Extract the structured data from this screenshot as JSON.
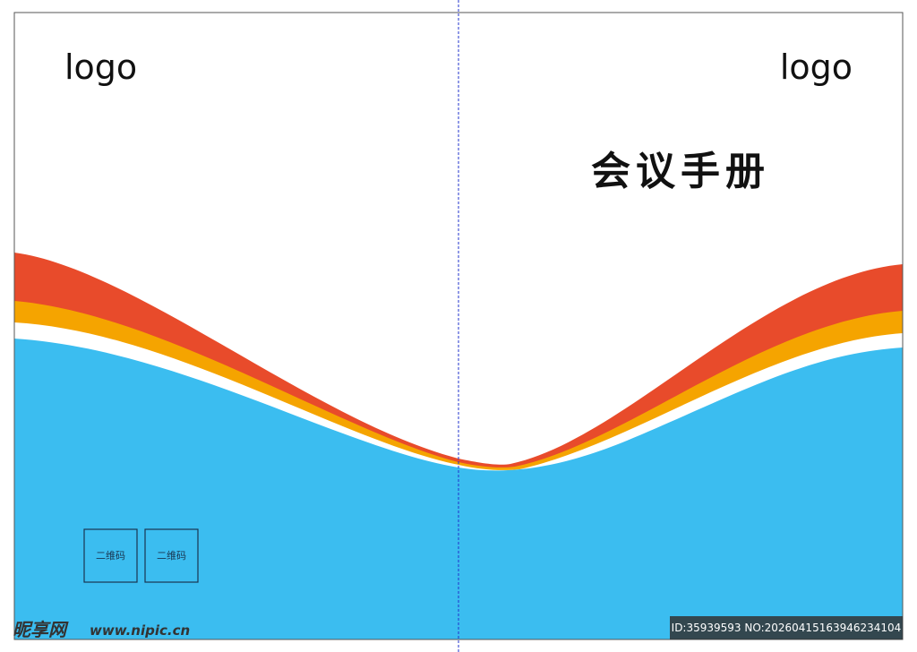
{
  "left_page": {
    "logo": "logo",
    "qr_codes": [
      "二维码",
      "二维码"
    ]
  },
  "right_page": {
    "logo": "logo",
    "title": "会议手册"
  },
  "watermark": {
    "site": "昵享网",
    "url": "www.nipic.cn",
    "id": "ID:35939593 NO:20260415163946234104"
  }
}
